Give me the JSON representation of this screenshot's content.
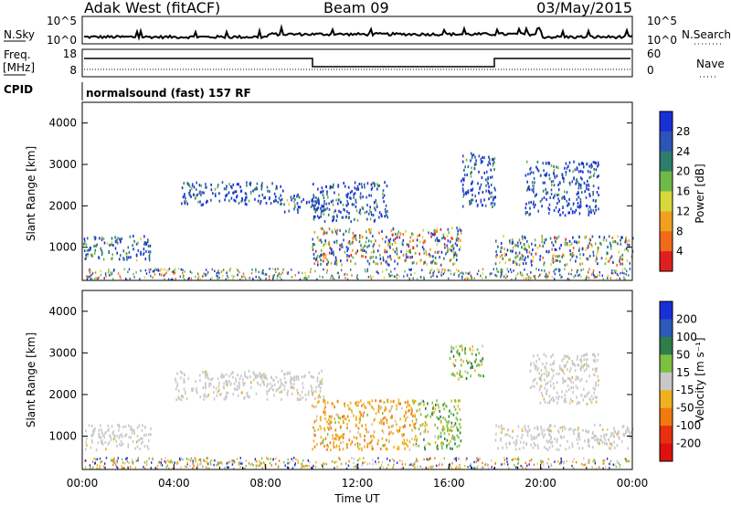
{
  "header": {
    "radar": "Adak West (fitACF)",
    "beam": "Beam 09",
    "date": "03/May/2015"
  },
  "noise_panel": {
    "left_label": "N.Sky",
    "right_label": "N.Search",
    "left_ticks": [
      "10^5",
      "10^0"
    ],
    "right_ticks": [
      "10^5",
      "10^0"
    ]
  },
  "freq_panel": {
    "left_label": "Freq.",
    "left_unit": "[MHz]",
    "right_label": "Nave",
    "left_ticks": [
      "18",
      "8"
    ],
    "right_ticks": [
      "60",
      "0"
    ],
    "cpid_label": "CPID",
    "cpid_text": "normalsound (fast) 157 RF"
  },
  "chart_data": [
    {
      "type": "heatmap",
      "name": "power",
      "ylabel": "Slant Range [km]",
      "xlabel": "",
      "yticks": [
        "1000",
        "2000",
        "3000",
        "4000"
      ],
      "ylim": [
        200,
        4500
      ],
      "xlim": [
        0,
        24
      ],
      "colorbar": {
        "label": "Power [dB]",
        "ticks": [
          "4",
          "8",
          "12",
          "16",
          "20",
          "24",
          "28"
        ],
        "colors": [
          "#1a2fd6",
          "#2c55b8",
          "#2e7d6b",
          "#6fb84a",
          "#d8d83a",
          "#f0a020",
          "#f06a18",
          "#e02020"
        ]
      },
      "echo_regions": [
        {
          "t0": 0.0,
          "t1": 3.0,
          "r0": 700,
          "r1": 1300,
          "level": "mid"
        },
        {
          "t0": 4.3,
          "t1": 8.8,
          "r0": 2050,
          "r1": 2600,
          "level": "low"
        },
        {
          "t0": 8.8,
          "t1": 10.5,
          "r0": 1850,
          "r1": 2300,
          "level": "mid"
        },
        {
          "t0": 10.0,
          "t1": 13.3,
          "r0": 1650,
          "r1": 2600,
          "level": "low"
        },
        {
          "t0": 10.0,
          "t1": 16.5,
          "r0": 600,
          "r1": 1500,
          "level": "high"
        },
        {
          "t0": 16.5,
          "t1": 18.0,
          "r0": 2000,
          "r1": 3300,
          "level": "low"
        },
        {
          "t0": 18.0,
          "t1": 24.0,
          "r0": 600,
          "r1": 1300,
          "level": "high"
        },
        {
          "t0": 19.3,
          "t1": 22.5,
          "r0": 1800,
          "r1": 3100,
          "level": "low"
        }
      ]
    },
    {
      "type": "heatmap",
      "name": "velocity",
      "ylabel": "Slant Range [km]",
      "xlabel": "Time UT",
      "yticks": [
        "1000",
        "2000",
        "3000",
        "4000"
      ],
      "ylim": [
        200,
        4500
      ],
      "xticks": [
        "00:00",
        "04:00",
        "08:00",
        "12:00",
        "16:00",
        "20:00",
        "00:00"
      ],
      "colorbar": {
        "label": "Velocity [m s⁻¹]",
        "ticks": [
          "200",
          "100",
          "50",
          "15",
          "-15",
          "-50",
          "-100",
          "-200"
        ],
        "colors": [
          "#1a2fd6",
          "#2c5ab8",
          "#2e7d4a",
          "#7dc040",
          "#c8c8c8",
          "#f0b020",
          "#f07a10",
          "#e83010",
          "#e01010"
        ]
      },
      "echo_regions": [
        {
          "t0": 0.0,
          "t1": 3.0,
          "r0": 700,
          "r1": 1300,
          "level": "gray"
        },
        {
          "t0": 4.0,
          "t1": 10.5,
          "r0": 1900,
          "r1": 2600,
          "level": "gray"
        },
        {
          "t0": 10.0,
          "t1": 14.5,
          "r0": 700,
          "r1": 1900,
          "level": "orange"
        },
        {
          "t0": 14.5,
          "t1": 16.5,
          "r0": 700,
          "r1": 1900,
          "level": "green"
        },
        {
          "t0": 16.0,
          "t1": 17.5,
          "r0": 2400,
          "r1": 3200,
          "level": "green"
        },
        {
          "t0": 18.0,
          "t1": 24.0,
          "r0": 700,
          "r1": 1300,
          "level": "gray"
        },
        {
          "t0": 19.5,
          "t1": 22.5,
          "r0": 1800,
          "r1": 3000,
          "level": "gray"
        }
      ]
    }
  ]
}
